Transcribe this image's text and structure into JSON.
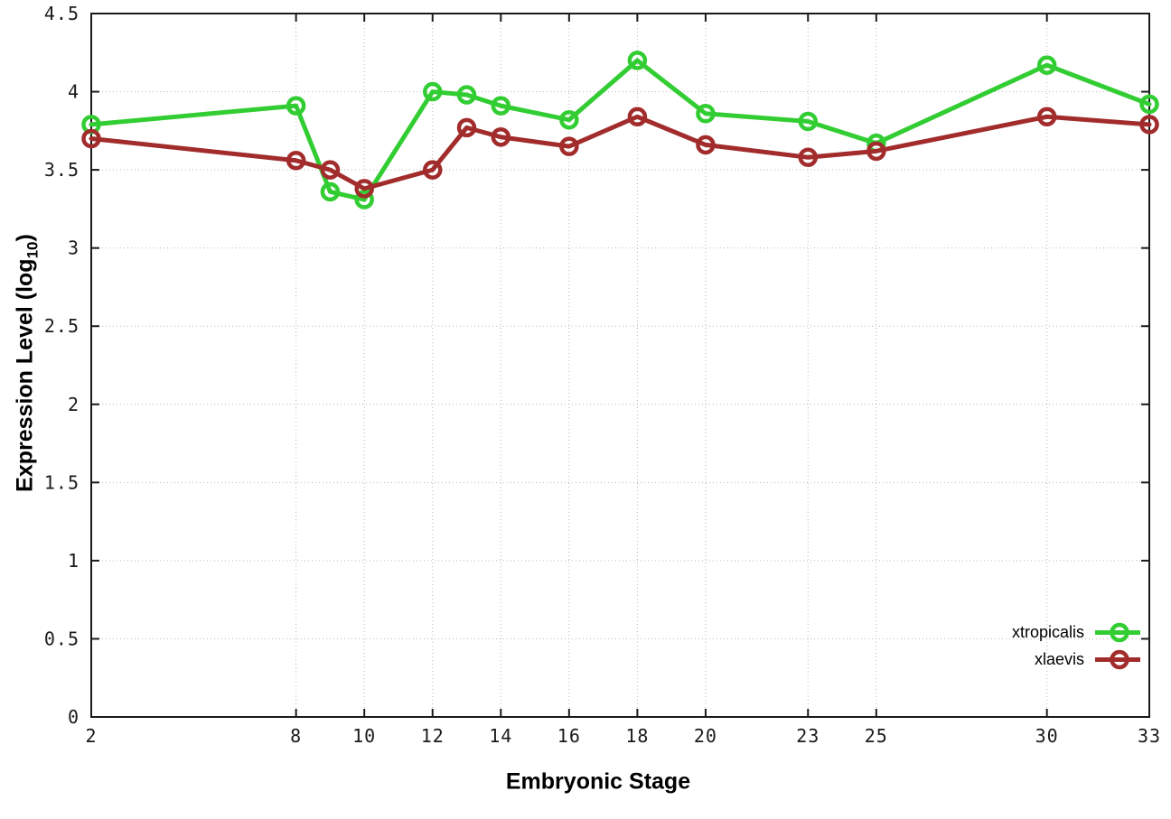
{
  "labels": {
    "xlabel": "Embryonic Stage",
    "ylabel_main": "Expression Level (log",
    "ylabel_sub": "10",
    "ylabel_close": ")"
  },
  "chart_data": {
    "type": "line",
    "title": "",
    "xlabel": "Embryonic Stage",
    "ylabel": "Expression Level (log10)",
    "xlim": [
      2,
      33
    ],
    "ylim": [
      0,
      4.5
    ],
    "x_ticks": [
      2,
      8,
      10,
      12,
      14,
      16,
      18,
      20,
      23,
      25,
      30,
      33
    ],
    "y_ticks": [
      0,
      0.5,
      1,
      1.5,
      2,
      2.5,
      3,
      3.5,
      4,
      4.5
    ],
    "grid": true,
    "legend_position": "inside-bottom-right",
    "x": [
      2,
      8,
      9,
      10,
      12,
      13,
      14,
      16,
      18,
      20,
      23,
      25,
      30,
      33
    ],
    "series": [
      {
        "name": "xtropicalis",
        "color": "#32cd32",
        "marker": "open-circle",
        "values": [
          3.79,
          3.91,
          3.36,
          3.31,
          4.0,
          3.98,
          3.91,
          3.82,
          4.2,
          3.86,
          3.81,
          3.67,
          4.17,
          3.92
        ]
      },
      {
        "name": "xlaevis",
        "color": "#a22c2c",
        "marker": "open-circle",
        "values": [
          3.7,
          3.56,
          3.5,
          3.38,
          3.5,
          3.77,
          3.71,
          3.65,
          3.84,
          3.66,
          3.58,
          3.62,
          3.84,
          3.79
        ]
      }
    ]
  }
}
